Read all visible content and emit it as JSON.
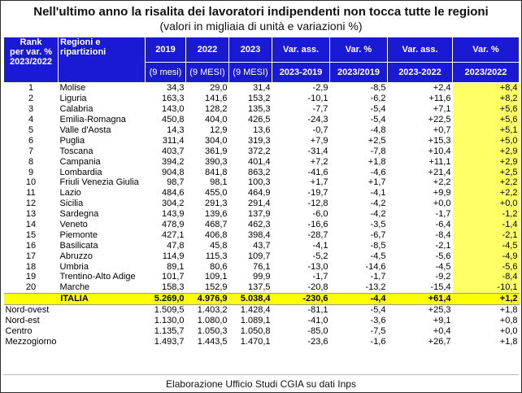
{
  "title": "Nell'ultimo anno la risalita dei lavoratori indipendenti non tocca tutte le regioni",
  "subtitle": "(valori in migliaia di unità e variazioni %)",
  "header": {
    "rank": [
      "Rank",
      "per var. %",
      "2023/2022"
    ],
    "region": [
      "Regioni e",
      "ripartizioni"
    ],
    "cols_top": [
      "2019",
      "2022",
      "2023",
      "Var. ass.",
      "Var. %",
      "Var. ass.",
      "Var. %"
    ],
    "cols_sub": [
      "(9 mesi)",
      "(9 MESI)",
      "(9 MESI)",
      "2023-2019",
      "2023/2019",
      "2023-2022",
      "2023/2022"
    ]
  },
  "rows": [
    {
      "rank": "1",
      "region": "Molise",
      "v2019": "34,3",
      "v2022": "29,0",
      "v2023": "31,4",
      "va1": "-2,9",
      "vp1": "-8,5",
      "va2": "+2,4",
      "vp2": "+8,4"
    },
    {
      "rank": "2",
      "region": "Liguria",
      "v2019": "163,3",
      "v2022": "141,6",
      "v2023": "153,2",
      "va1": "-10,1",
      "vp1": "-6,2",
      "va2": "+11,6",
      "vp2": "+8,2"
    },
    {
      "rank": "3",
      "region": "Calabria",
      "v2019": "143,0",
      "v2022": "128,2",
      "v2023": "135,3",
      "va1": "-7,7",
      "vp1": "-5,4",
      "va2": "+7,1",
      "vp2": "+5,6"
    },
    {
      "rank": "4",
      "region": "Emilia-Romagna",
      "v2019": "450,8",
      "v2022": "404,0",
      "v2023": "426,5",
      "va1": "-24,3",
      "vp1": "-5,4",
      "va2": "+22,5",
      "vp2": "+5,6"
    },
    {
      "rank": "5",
      "region": "Valle d'Aosta",
      "v2019": "14,3",
      "v2022": "12,9",
      "v2023": "13,6",
      "va1": "-0,7",
      "vp1": "-4,8",
      "va2": "+0,7",
      "vp2": "+5,1"
    },
    {
      "rank": "6",
      "region": "Puglia",
      "v2019": "311,4",
      "v2022": "304,0",
      "v2023": "319,3",
      "va1": "+7,9",
      "vp1": "+2,5",
      "va2": "+15,3",
      "vp2": "+5,0"
    },
    {
      "rank": "7",
      "region": "Toscana",
      "v2019": "403,7",
      "v2022": "361,9",
      "v2023": "372,2",
      "va1": "-31,4",
      "vp1": "-7,8",
      "va2": "+10,4",
      "vp2": "+2,9"
    },
    {
      "rank": "8",
      "region": "Campania",
      "v2019": "394,2",
      "v2022": "390,3",
      "v2023": "401,4",
      "va1": "+7,2",
      "vp1": "+1,8",
      "va2": "+11,1",
      "vp2": "+2,9"
    },
    {
      "rank": "9",
      "region": "Lombardia",
      "v2019": "904,8",
      "v2022": "841,8",
      "v2023": "863,2",
      "va1": "-41,6",
      "vp1": "-4,6",
      "va2": "+21,4",
      "vp2": "+2,5"
    },
    {
      "rank": "10",
      "region": "Friuli Venezia Giulia",
      "v2019": "98,7",
      "v2022": "98,1",
      "v2023": "100,3",
      "va1": "+1,7",
      "vp1": "+1,7",
      "va2": "+2,2",
      "vp2": "+2,2"
    },
    {
      "rank": "11",
      "region": "Lazio",
      "v2019": "484,6",
      "v2022": "455,0",
      "v2023": "464,9",
      "va1": "-19,7",
      "vp1": "-4,1",
      "va2": "+9,9",
      "vp2": "+2,2"
    },
    {
      "rank": "12",
      "region": "Sicilia",
      "v2019": "304,2",
      "v2022": "291,3",
      "v2023": "291,4",
      "va1": "-12,8",
      "vp1": "-4,2",
      "va2": "+0,0",
      "vp2": "+0,0"
    },
    {
      "rank": "13",
      "region": "Sardegna",
      "v2019": "143,9",
      "v2022": "139,6",
      "v2023": "137,9",
      "va1": "-6,0",
      "vp1": "-4,2",
      "va2": "-1,7",
      "vp2": "-1,2"
    },
    {
      "rank": "14",
      "region": "Veneto",
      "v2019": "478,9",
      "v2022": "468,7",
      "v2023": "462,3",
      "va1": "-16,6",
      "vp1": "-3,5",
      "va2": "-6,4",
      "vp2": "-1,4"
    },
    {
      "rank": "15",
      "region": "Piemonte",
      "v2019": "427,1",
      "v2022": "406,8",
      "v2023": "398,4",
      "va1": "-28,7",
      "vp1": "-6,7",
      "va2": "-8,4",
      "vp2": "-2,1"
    },
    {
      "rank": "16",
      "region": "Basilicata",
      "v2019": "47,8",
      "v2022": "45,8",
      "v2023": "43,7",
      "va1": "-4,1",
      "vp1": "-8,5",
      "va2": "-2,1",
      "vp2": "-4,5"
    },
    {
      "rank": "17",
      "region": "Abruzzo",
      "v2019": "114,9",
      "v2022": "115,3",
      "v2023": "109,7",
      "va1": "-5,2",
      "vp1": "-4,5",
      "va2": "-5,6",
      "vp2": "-4,9"
    },
    {
      "rank": "18",
      "region": "Umbria",
      "v2019": "89,1",
      "v2022": "80,6",
      "v2023": "76,1",
      "va1": "-13,0",
      "vp1": "-14,6",
      "va2": "-4,5",
      "vp2": "-5,6"
    },
    {
      "rank": "19",
      "region": "Trentino-Alto Adige",
      "v2019": "101,7",
      "v2022": "109,1",
      "v2023": "99,9",
      "va1": "-1,7",
      "vp1": "-1,7",
      "va2": "-9,2",
      "vp2": "-8,4"
    },
    {
      "rank": "20",
      "region": "Marche",
      "v2019": "158,3",
      "v2022": "152,9",
      "v2023": "137,5",
      "va1": "-20,8",
      "vp1": "-13,2",
      "va2": "-15,4",
      "vp2": "-10,1"
    }
  ],
  "italia": {
    "region": "ITALIA",
    "v2019": "5.269,0",
    "v2022": "4.976,9",
    "v2023": "5.038,4",
    "va1": "-230,6",
    "vp1": "-4,4",
    "va2": "+61,4",
    "vp2": "+1,2"
  },
  "ripartizioni": [
    {
      "region": "Nord-ovest",
      "v2019": "1.509,5",
      "v2022": "1.403,2",
      "v2023": "1.428,4",
      "va1": "-81,1",
      "vp1": "-5,4",
      "va2": "+25,3",
      "vp2": "+1,8"
    },
    {
      "region": "Nord-est",
      "v2019": "1.130,0",
      "v2022": "1.080,0",
      "v2023": "1.089,1",
      "va1": "-41,0",
      "vp1": "-3,6",
      "va2": "+9,1",
      "vp2": "+0,8"
    },
    {
      "region": "Centro",
      "v2019": "1.135,7",
      "v2022": "1.050,3",
      "v2023": "1.050,8",
      "va1": "-85,0",
      "vp1": "-7,5",
      "va2": "+0,4",
      "vp2": "+0,0"
    },
    {
      "region": "Mezzogiorno",
      "v2019": "1.493,7",
      "v2022": "1.443,5",
      "v2023": "1.470,1",
      "va1": "-23,6",
      "vp1": "-1,6",
      "va2": "+26,7",
      "vp2": "+1,8"
    }
  ],
  "footer": "Elaborazione Ufficio Studi CGIA su dati Inps",
  "colors": {
    "header_bg": "#1a1ad4",
    "highlight": "#ffff66",
    "total_row": "#ffff00"
  }
}
